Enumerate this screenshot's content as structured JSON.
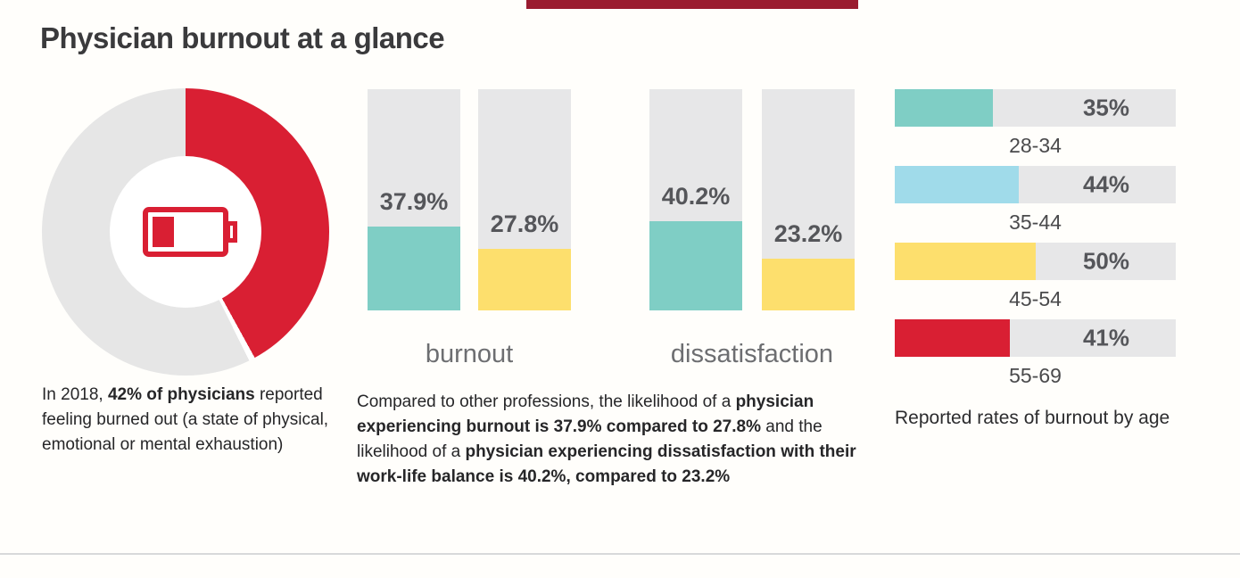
{
  "title": "Physician burnout at a glance",
  "colors": {
    "red": "#d91f33",
    "teal": "#7fcec5",
    "yellow": "#fddf6d",
    "blue": "#a0dbea",
    "track": "#e7e7e8",
    "top_bar": "#9a1c30"
  },
  "chart_data": [
    {
      "type": "pie",
      "donut": true,
      "start": "top",
      "direction": "clockwise",
      "values": [
        42,
        58
      ],
      "labels": [
        "physicians reporting burnout",
        "remainder"
      ],
      "colors": [
        "#d91f33",
        "#e6e6e6"
      ],
      "center_icon": "low-battery-icon",
      "highlight_value": "42%"
    },
    {
      "type": "bar",
      "orientation": "vertical",
      "ylim": [
        0,
        100
      ],
      "grid": false,
      "legend": "none",
      "groups": [
        {
          "label": "burnout",
          "bars": [
            {
              "value": 37.9,
              "display": "37.9%",
              "color": "#7fcec5"
            },
            {
              "value": 27.8,
              "display": "27.8%",
              "color": "#fddf6d"
            }
          ]
        },
        {
          "label": "dissatisfaction",
          "bars": [
            {
              "value": 40.2,
              "display": "40.2%",
              "color": "#7fcec5"
            },
            {
              "value": 23.2,
              "display": "23.2%",
              "color": "#fddf6d"
            }
          ]
        }
      ]
    },
    {
      "type": "bar",
      "orientation": "horizontal",
      "xlim": [
        0,
        100
      ],
      "grid": false,
      "categories": [
        "28-34",
        "35-44",
        "45-54",
        "55-69"
      ],
      "values": [
        35,
        44,
        50,
        41
      ],
      "display_values": [
        "35%",
        "44%",
        "50%",
        "41%"
      ],
      "bar_colors": [
        "#7fcec5",
        "#a0dbea",
        "#fddf6d",
        "#d91f33"
      ],
      "caption": "Reported rates of burnout by age"
    }
  ],
  "captions": {
    "donut": [
      {
        "text": "In 2018, ",
        "bold": false
      },
      {
        "text": "42% of physicians",
        "bold": true
      },
      {
        "text": " reported feeling burned out (a state of physical, emotional or mental exhaustion)",
        "bold": false
      }
    ],
    "comparison": [
      {
        "text": "Compared to other professions, the likelihood of a ",
        "bold": false
      },
      {
        "text": "physician experiencing burnout is 37.9% compared to 27.8%",
        "bold": true
      },
      {
        "text": " and the likelihood of a ",
        "bold": false
      },
      {
        "text": "physician experiencing dissatisfaction with their work-life balance is 40.2%, compared to 23.2%",
        "bold": true
      }
    ],
    "age": "Reported rates of burnout by age"
  }
}
